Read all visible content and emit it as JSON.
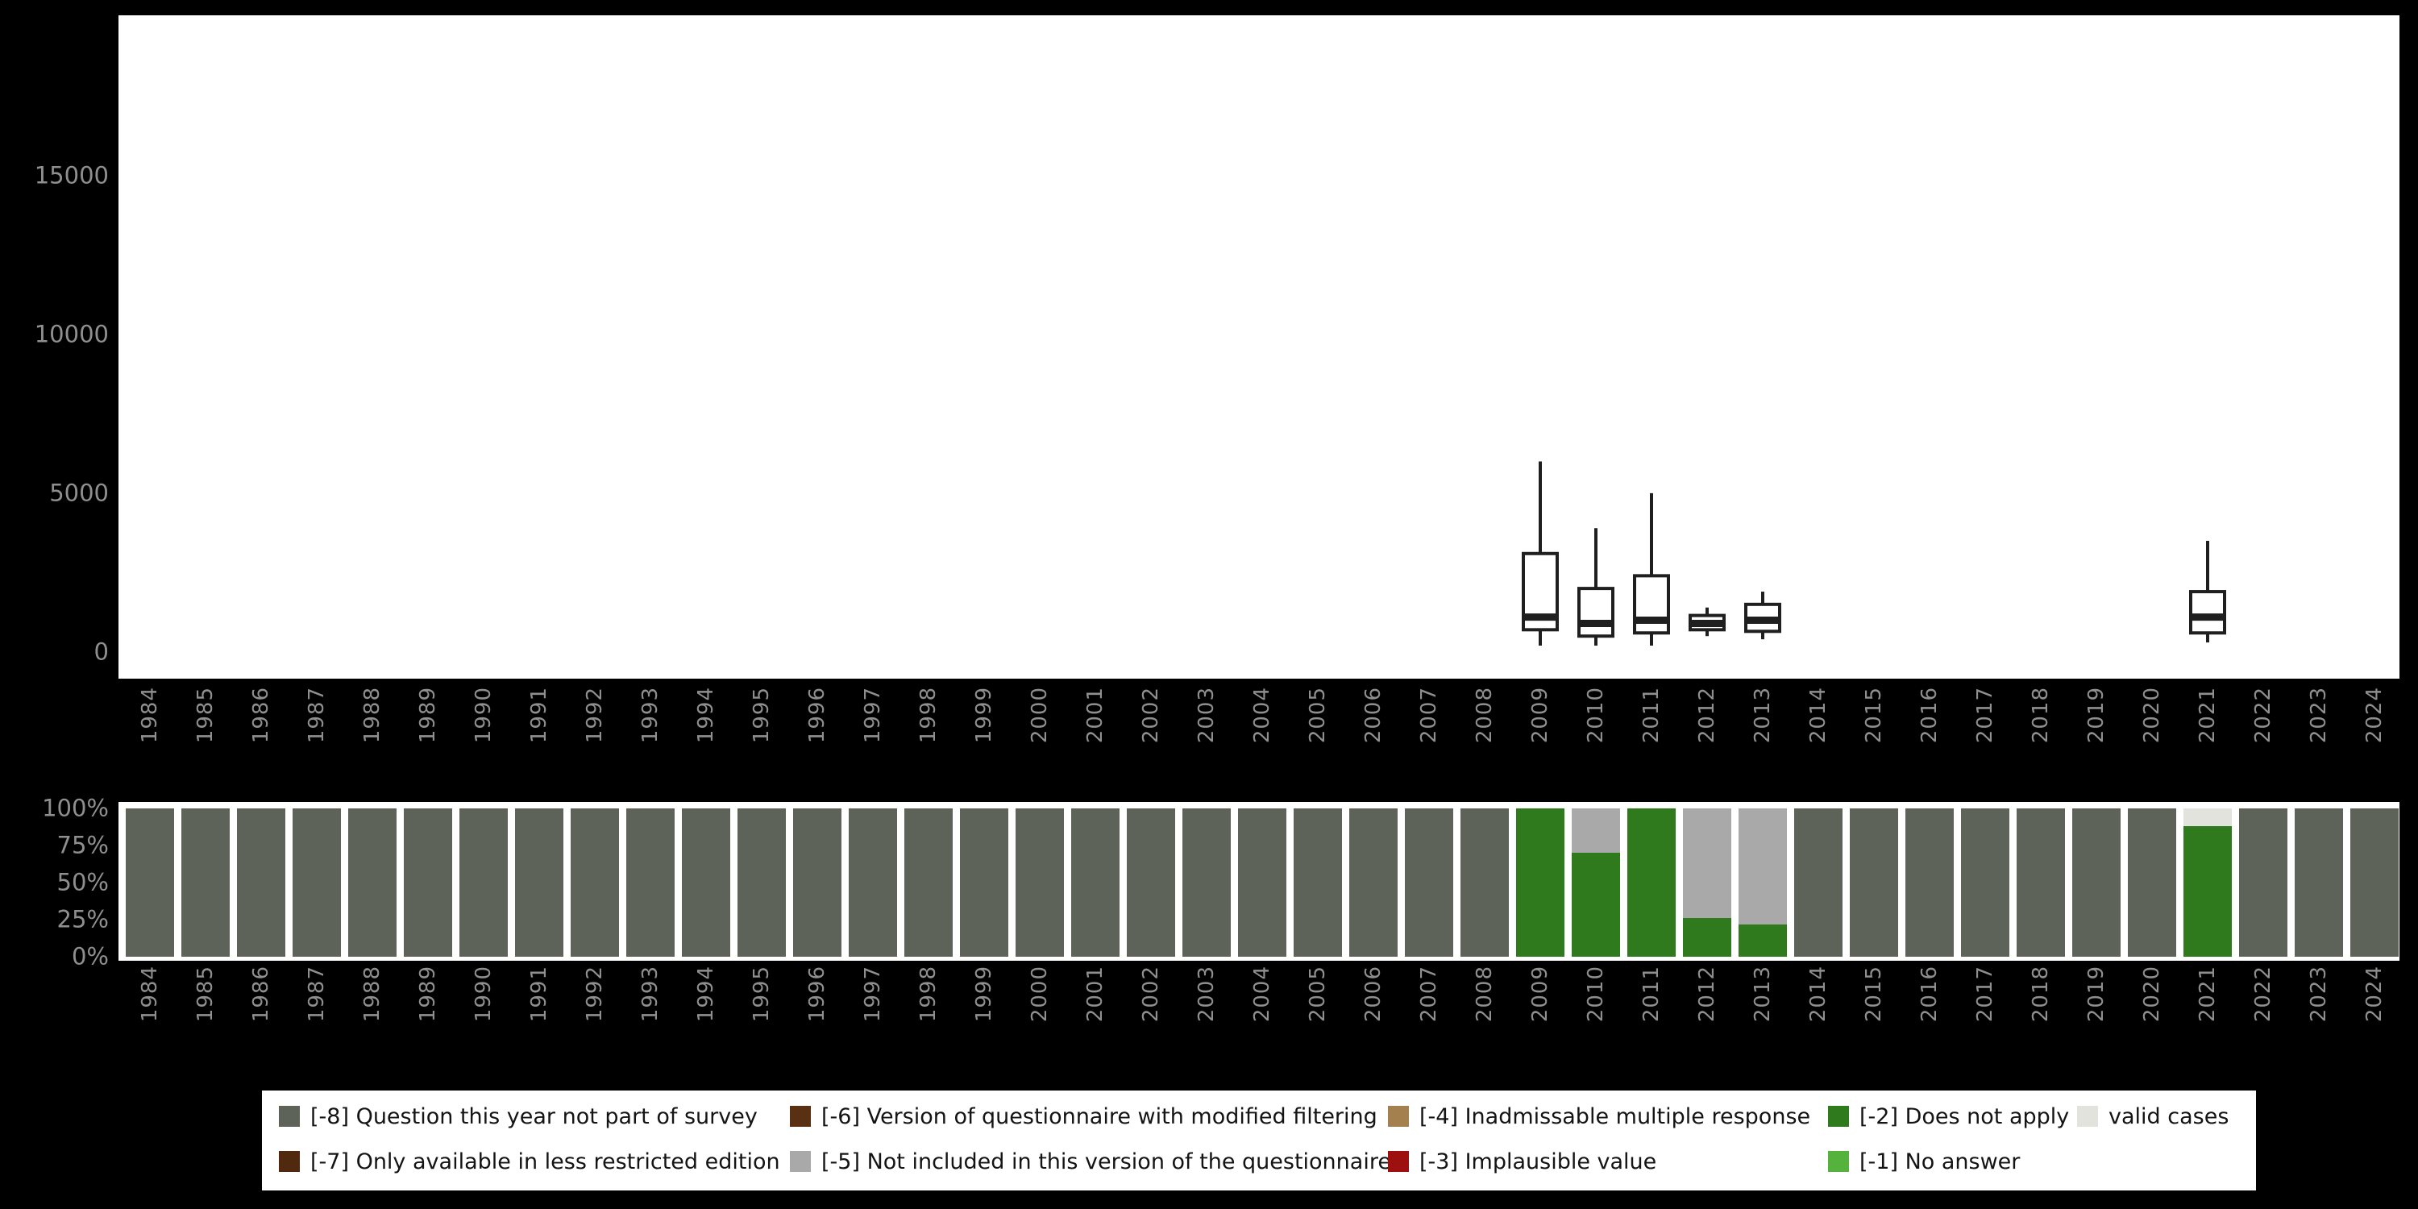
{
  "colors": {
    "m8": "#5d6358",
    "m7": "#50290e",
    "m6": "#593112",
    "m5": "#a9a9a9",
    "m4": "#a3804d",
    "m3": "#9e1010",
    "m2": "#2e7a1c",
    "m1": "#55b23d",
    "valid": "#e3e3dd"
  },
  "years": [
    "1984",
    "1985",
    "1986",
    "1987",
    "1988",
    "1989",
    "1990",
    "1991",
    "1992",
    "1993",
    "1994",
    "1995",
    "1996",
    "1997",
    "1998",
    "1999",
    "2000",
    "2001",
    "2002",
    "2003",
    "2004",
    "2005",
    "2006",
    "2007",
    "2008",
    "2009",
    "2010",
    "2011",
    "2012",
    "2013",
    "2014",
    "2015",
    "2016",
    "2017",
    "2018",
    "2019",
    "2020",
    "2021",
    "2022",
    "2023",
    "2024"
  ],
  "chart_data": [
    {
      "type": "boxplot",
      "title": "",
      "xlabel": "",
      "ylabel": "",
      "ylim": [
        -840,
        20050
      ],
      "yticks": [
        {
          "label": "0",
          "value": 0
        },
        {
          "label": "5000",
          "value": 5000
        },
        {
          "label": "10000",
          "value": 10000
        },
        {
          "label": "15000",
          "value": 15000
        }
      ],
      "grid": false,
      "series": [
        {
          "year": "2009",
          "min": 200,
          "q1": 700,
          "median": 1100,
          "q3": 3100,
          "max": 6000
        },
        {
          "year": "2010",
          "min": 200,
          "q1": 500,
          "median": 900,
          "q3": 2000,
          "max": 3900
        },
        {
          "year": "2011",
          "min": 200,
          "q1": 600,
          "median": 1000,
          "q3": 2400,
          "max": 5000
        },
        {
          "year": "2012",
          "min": 500,
          "q1": 700,
          "median": 900,
          "q3": 1150,
          "max": 1400
        },
        {
          "year": "2013",
          "min": 400,
          "q1": 650,
          "median": 1000,
          "q3": 1500,
          "max": 1900
        },
        {
          "year": "2021",
          "min": 300,
          "q1": 600,
          "median": 1100,
          "q3": 1900,
          "max": 3500
        }
      ]
    },
    {
      "type": "stacked-bar-100",
      "title": "",
      "xlabel": "",
      "ylabel": "",
      "grid": false,
      "yticks": [
        {
          "label": "100%",
          "pct": 100
        },
        {
          "label": "75%",
          "pct": 75
        },
        {
          "label": "50%",
          "pct": 50
        },
        {
          "label": "25%",
          "pct": 25
        },
        {
          "label": "0%",
          "pct": 0
        }
      ],
      "bars": [
        {
          "year": "1984",
          "segments": [
            {
              "key": "m8",
              "pct": 100
            }
          ]
        },
        {
          "year": "1985",
          "segments": [
            {
              "key": "m8",
              "pct": 100
            }
          ]
        },
        {
          "year": "1986",
          "segments": [
            {
              "key": "m8",
              "pct": 100
            }
          ]
        },
        {
          "year": "1987",
          "segments": [
            {
              "key": "m8",
              "pct": 100
            }
          ]
        },
        {
          "year": "1988",
          "segments": [
            {
              "key": "m8",
              "pct": 100
            }
          ]
        },
        {
          "year": "1989",
          "segments": [
            {
              "key": "m8",
              "pct": 100
            }
          ]
        },
        {
          "year": "1990",
          "segments": [
            {
              "key": "m8",
              "pct": 100
            }
          ]
        },
        {
          "year": "1991",
          "segments": [
            {
              "key": "m8",
              "pct": 100
            }
          ]
        },
        {
          "year": "1992",
          "segments": [
            {
              "key": "m8",
              "pct": 100
            }
          ]
        },
        {
          "year": "1993",
          "segments": [
            {
              "key": "m8",
              "pct": 100
            }
          ]
        },
        {
          "year": "1994",
          "segments": [
            {
              "key": "m8",
              "pct": 100
            }
          ]
        },
        {
          "year": "1995",
          "segments": [
            {
              "key": "m8",
              "pct": 100
            }
          ]
        },
        {
          "year": "1996",
          "segments": [
            {
              "key": "m8",
              "pct": 100
            }
          ]
        },
        {
          "year": "1997",
          "segments": [
            {
              "key": "m8",
              "pct": 100
            }
          ]
        },
        {
          "year": "1998",
          "segments": [
            {
              "key": "m8",
              "pct": 100
            }
          ]
        },
        {
          "year": "1999",
          "segments": [
            {
              "key": "m8",
              "pct": 100
            }
          ]
        },
        {
          "year": "2000",
          "segments": [
            {
              "key": "m8",
              "pct": 100
            }
          ]
        },
        {
          "year": "2001",
          "segments": [
            {
              "key": "m8",
              "pct": 100
            }
          ]
        },
        {
          "year": "2002",
          "segments": [
            {
              "key": "m8",
              "pct": 100
            }
          ]
        },
        {
          "year": "2003",
          "segments": [
            {
              "key": "m8",
              "pct": 100
            }
          ]
        },
        {
          "year": "2004",
          "segments": [
            {
              "key": "m8",
              "pct": 100
            }
          ]
        },
        {
          "year": "2005",
          "segments": [
            {
              "key": "m8",
              "pct": 100
            }
          ]
        },
        {
          "year": "2006",
          "segments": [
            {
              "key": "m8",
              "pct": 100
            }
          ]
        },
        {
          "year": "2007",
          "segments": [
            {
              "key": "m8",
              "pct": 100
            }
          ]
        },
        {
          "year": "2008",
          "segments": [
            {
              "key": "m8",
              "pct": 100
            }
          ]
        },
        {
          "year": "2009",
          "segments": [
            {
              "key": "m2",
              "pct": 100
            }
          ]
        },
        {
          "year": "2010",
          "segments": [
            {
              "key": "m2",
              "pct": 70
            },
            {
              "key": "m5",
              "pct": 30
            }
          ]
        },
        {
          "year": "2011",
          "segments": [
            {
              "key": "m2",
              "pct": 100
            }
          ]
        },
        {
          "year": "2012",
          "segments": [
            {
              "key": "m2",
              "pct": 26
            },
            {
              "key": "m5",
              "pct": 74
            }
          ]
        },
        {
          "year": "2013",
          "segments": [
            {
              "key": "m2",
              "pct": 22
            },
            {
              "key": "m5",
              "pct": 78
            }
          ]
        },
        {
          "year": "2014",
          "segments": [
            {
              "key": "m8",
              "pct": 100
            }
          ]
        },
        {
          "year": "2015",
          "segments": [
            {
              "key": "m8",
              "pct": 100
            }
          ]
        },
        {
          "year": "2016",
          "segments": [
            {
              "key": "m8",
              "pct": 100
            }
          ]
        },
        {
          "year": "2017",
          "segments": [
            {
              "key": "m8",
              "pct": 100
            }
          ]
        },
        {
          "year": "2018",
          "segments": [
            {
              "key": "m8",
              "pct": 100
            }
          ]
        },
        {
          "year": "2019",
          "segments": [
            {
              "key": "m8",
              "pct": 100
            }
          ]
        },
        {
          "year": "2020",
          "segments": [
            {
              "key": "m8",
              "pct": 100
            }
          ]
        },
        {
          "year": "2021",
          "segments": [
            {
              "key": "m2",
              "pct": 88
            },
            {
              "key": "valid",
              "pct": 12
            }
          ]
        },
        {
          "year": "2022",
          "segments": [
            {
              "key": "m8",
              "pct": 100
            }
          ]
        },
        {
          "year": "2023",
          "segments": [
            {
              "key": "m8",
              "pct": 100
            }
          ]
        },
        {
          "year": "2024",
          "segments": [
            {
              "key": "m8",
              "pct": 100
            }
          ]
        }
      ]
    }
  ],
  "legend": {
    "items": [
      {
        "key": "m8",
        "label": "[-8] Question this year not part of survey",
        "row": 0,
        "col": 0
      },
      {
        "key": "m7",
        "label": "[-7] Only available in less restricted edition",
        "row": 1,
        "col": 0
      },
      {
        "key": "m6",
        "label": "[-6] Version of questionnaire with modified filtering",
        "row": 0,
        "col": 1
      },
      {
        "key": "m5",
        "label": "[-5] Not included in this version of the questionnaire",
        "row": 1,
        "col": 1
      },
      {
        "key": "m4",
        "label": "[-4] Inadmissable multiple response",
        "row": 0,
        "col": 2
      },
      {
        "key": "m3",
        "label": "[-3] Implausible value",
        "row": 1,
        "col": 2
      },
      {
        "key": "m2",
        "label": "[-2] Does not apply",
        "row": 0,
        "col": 3
      },
      {
        "key": "m1",
        "label": "[-1] No answer",
        "row": 1,
        "col": 3
      },
      {
        "key": "valid",
        "label": "valid cases",
        "row": 0,
        "col": 4
      }
    ]
  }
}
